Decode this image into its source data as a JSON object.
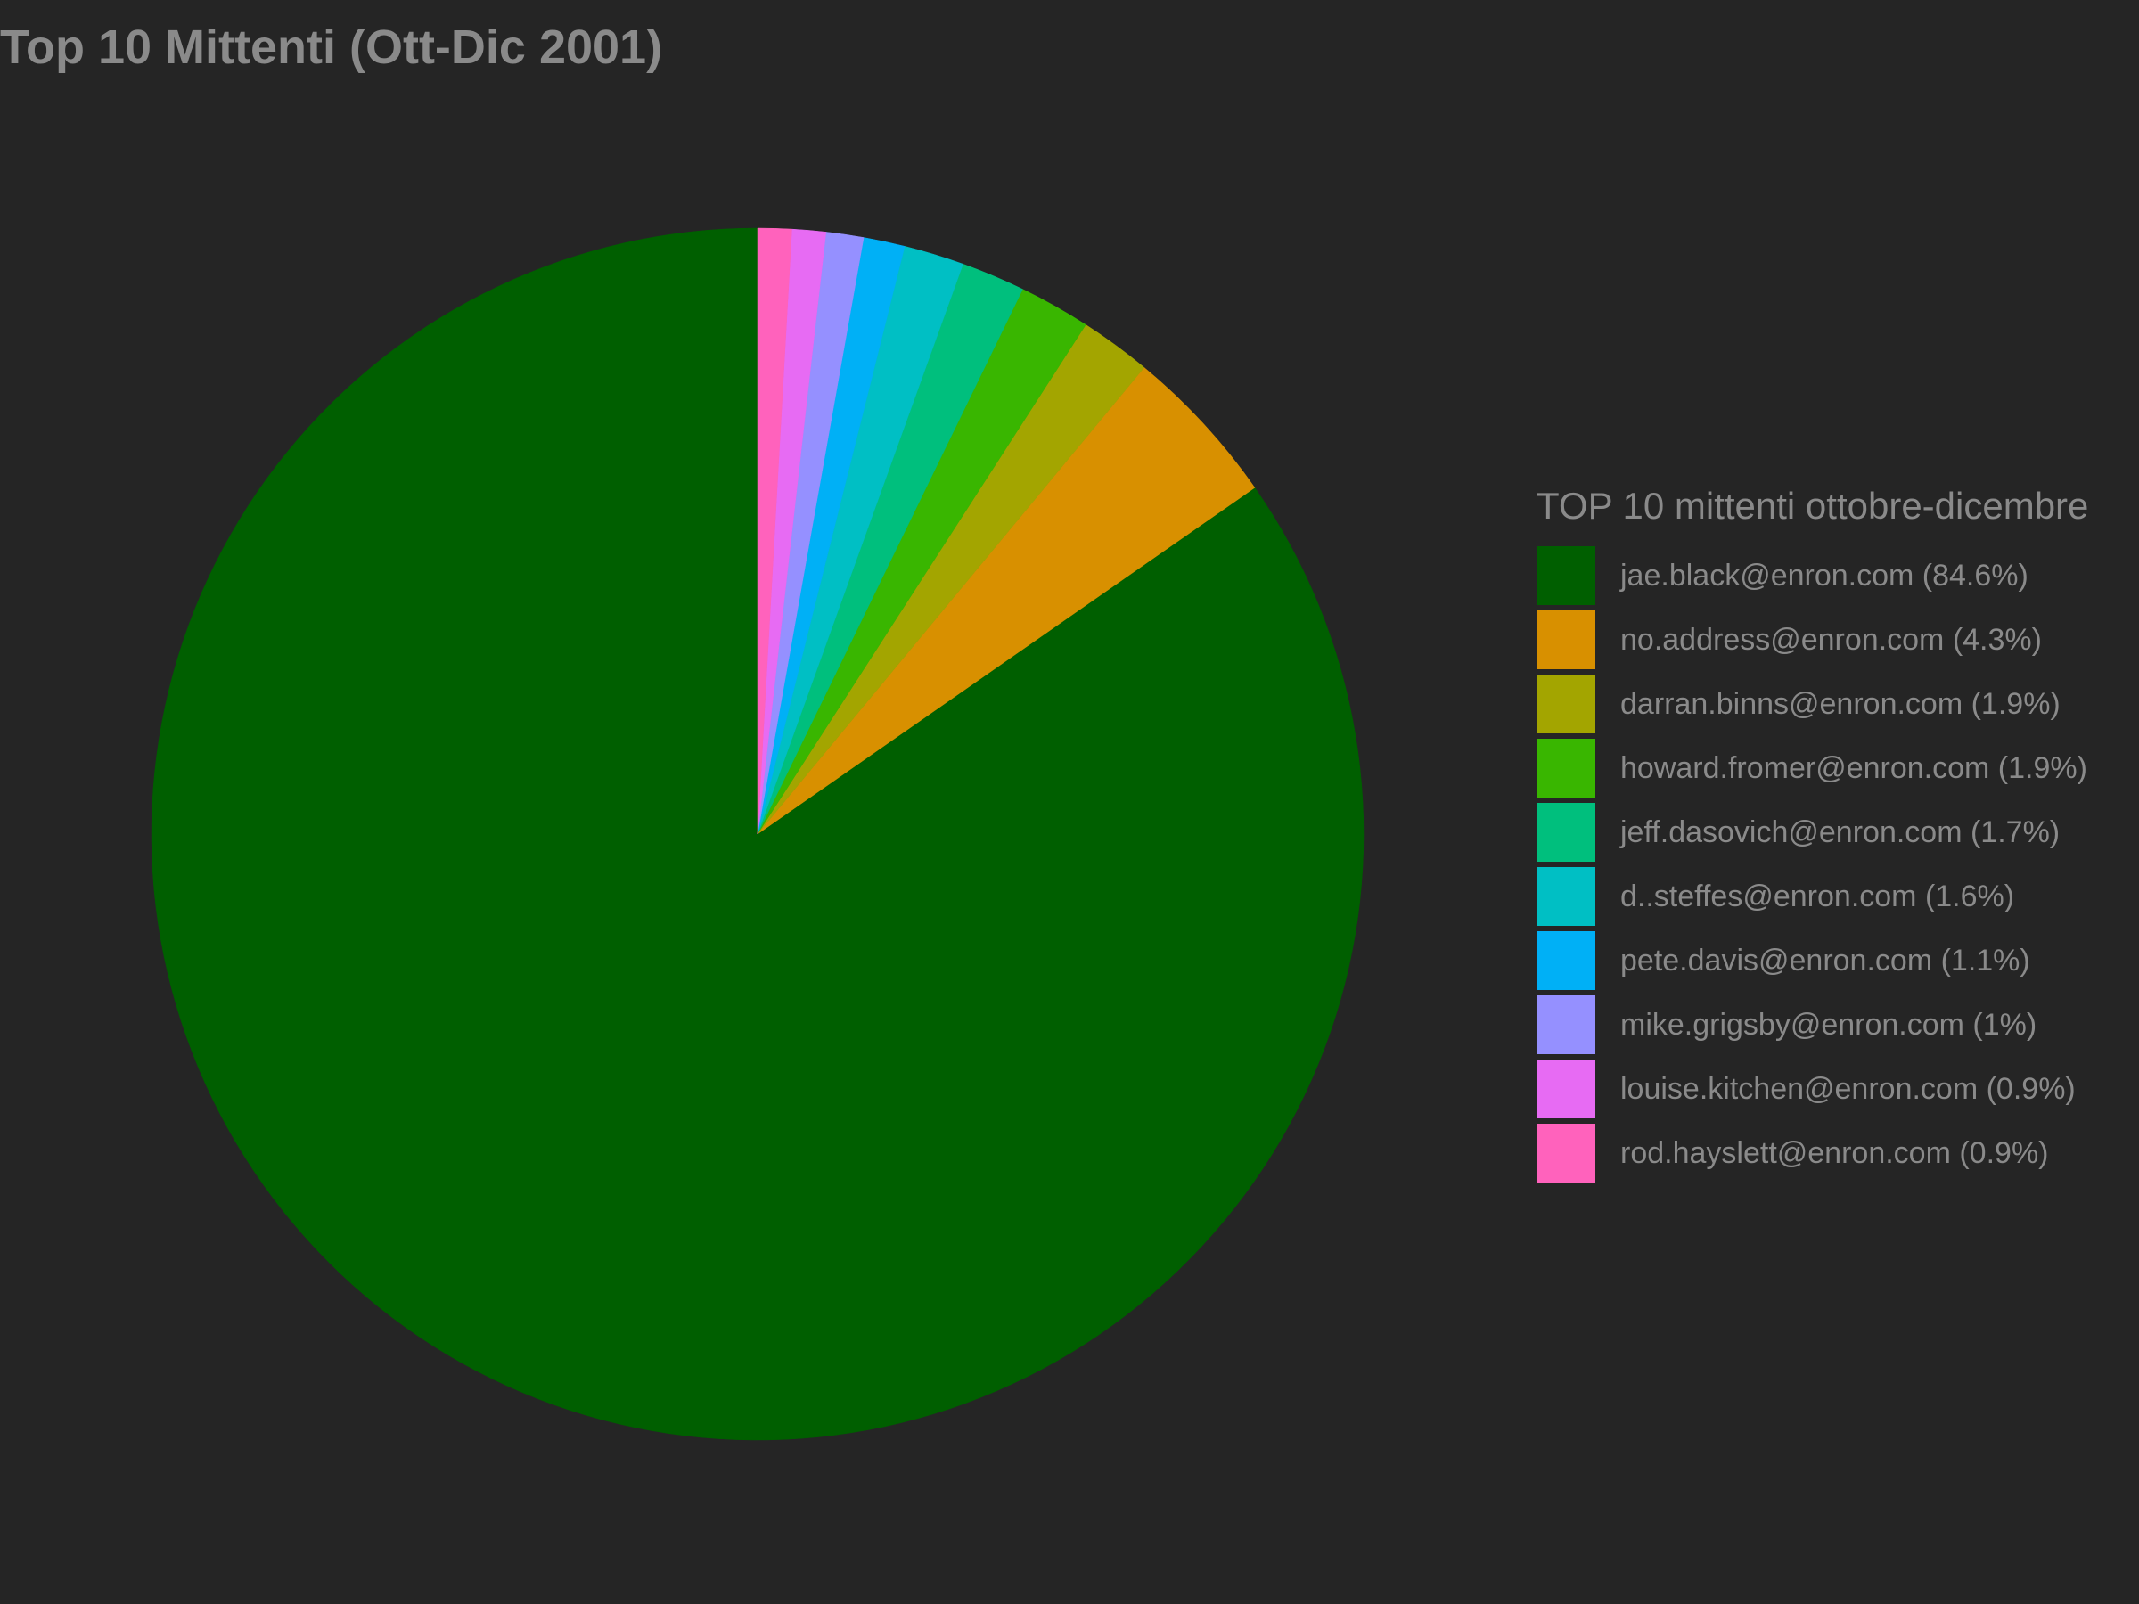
{
  "chart_data": {
    "type": "pie",
    "title": "Top 10 Mittenti (Ott-Dic 2001)",
    "legend_title": "TOP 10 mittenti ottobre-dicembre",
    "legend_position": "right",
    "start_angle": "top",
    "direction": "clockwise",
    "slices": [
      {
        "label": "jae.black@enron.com",
        "value": 84.6,
        "legend": "jae.black@enron.com (84.6%)",
        "color": "#005f00"
      },
      {
        "label": "no.address@enron.com",
        "value": 4.3,
        "legend": "no.address@enron.com (4.3%)",
        "color": "#d89000"
      },
      {
        "label": "darran.binns@enron.com",
        "value": 1.9,
        "legend": "darran.binns@enron.com (1.9%)",
        "color": "#a3a500"
      },
      {
        "label": "howard.fromer@enron.com",
        "value": 1.9,
        "legend": "howard.fromer@enron.com (1.9%)",
        "color": "#39b600"
      },
      {
        "label": "jeff.dasovich@enron.com",
        "value": 1.7,
        "legend": "jeff.dasovich@enron.com (1.7%)",
        "color": "#00bf7d"
      },
      {
        "label": "d..steffes@enron.com",
        "value": 1.6,
        "legend": "d..steffes@enron.com (1.6%)",
        "color": "#00bfc4"
      },
      {
        "label": "pete.davis@enron.com",
        "value": 1.1,
        "legend": "pete.davis@enron.com (1.1%)",
        "color": "#00b0f6"
      },
      {
        "label": "mike.grigsby@enron.com",
        "value": 1.0,
        "legend": "mike.grigsby@enron.com (1%)",
        "color": "#9590ff"
      },
      {
        "label": "louise.kitchen@enron.com",
        "value": 0.9,
        "legend": "louise.kitchen@enron.com (0.9%)",
        "color": "#e76bf3"
      },
      {
        "label": "rod.hayslett@enron.com",
        "value": 0.9,
        "legend": "rod.hayslett@enron.com (0.9%)",
        "color": "#ff62bc"
      }
    ]
  }
}
